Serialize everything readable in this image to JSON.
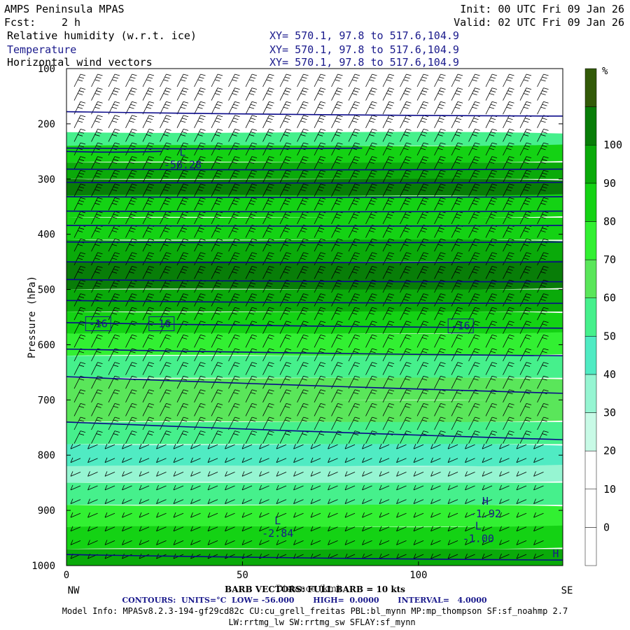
{
  "header": {
    "title": "AMPS Peninsula MPAS",
    "fcst_label": "Fcst:",
    "fcst_value": "2 h",
    "init": "Init: 00 UTC Fri 09 Jan 26",
    "valid": "Valid: 02 UTC Fri 09 Jan 26",
    "fields": [
      {
        "name": "Relative humidity (w.r.t. ice)",
        "xy": "XY= 570.1, 97.8 to 517.6,104.9"
      },
      {
        "name": "Temperature",
        "xy": "XY= 570.1, 97.8 to 517.6,104.9"
      },
      {
        "name": "Horizontal wind vectors",
        "xy": "XY= 570.1, 97.8 to 517.6,104.9"
      }
    ]
  },
  "footer": {
    "barb": "BARB VECTORS: FULL BARB = 10 kts",
    "xlabel": "Distance (km)",
    "contours": "CONTOURS:  UNITS=°C  LOW= -56.000       HIGH=  0.0000       INTERVAL=   4.0000",
    "model_info_1": "Model Info: MPASv8.2.3-194-gf29cd82c CU:cu_grell_freitas PBL:bl_mynn MP:mp_thompson SF:sf_noahmp 2.7",
    "model_info_2": "LW:rrtmg_lw SW:rrtmg_sw SFLAY:sf_mynn"
  },
  "colors": {
    "contour": "#0a0a8a",
    "rh_bins": [
      "#ffffff",
      "#ffffff",
      "#ffffff",
      "#c8fae6",
      "#96f5d2",
      "#50ebc3",
      "#46f08c",
      "#5ae65a",
      "#32f032",
      "#14d214",
      "#0aaa0a",
      "#087d08",
      "#325a08"
    ]
  },
  "chart_data": {
    "type": "heatmap",
    "ylabel": "Pressure (hPa)",
    "xlabel": "Distance (km)",
    "x_ticks": [
      0,
      50,
      100
    ],
    "x_range": [
      0,
      141
    ],
    "x_end_labels": {
      "left": "NW",
      "right": "SE"
    },
    "y_ticks": [
      100,
      200,
      300,
      400,
      500,
      600,
      700,
      800,
      900,
      1000
    ],
    "y_range": [
      100,
      1000
    ],
    "colorbar": {
      "unit": "%",
      "labels": [
        0,
        10,
        20,
        30,
        40,
        50,
        60,
        70,
        80,
        90,
        100
      ]
    },
    "rh_bands": [
      {
        "p": 100,
        "rh": 5
      },
      {
        "p": 180,
        "rh": 8
      },
      {
        "p": 215,
        "rh": 40
      },
      {
        "p": 240,
        "rh": 78
      },
      {
        "p": 270,
        "rh": 88
      },
      {
        "p": 300,
        "rh": 92
      },
      {
        "p": 330,
        "rh": 78
      },
      {
        "p": 370,
        "rh": 74
      },
      {
        "p": 410,
        "rh": 80
      },
      {
        "p": 450,
        "rh": 92
      },
      {
        "p": 500,
        "rh": 86
      },
      {
        "p": 540,
        "rh": 72
      },
      {
        "p": 580,
        "rh": 62
      },
      {
        "p": 620,
        "rh": 48
      },
      {
        "p": 660,
        "rh": 55
      },
      {
        "p": 700,
        "rh": 58
      },
      {
        "p": 740,
        "rh": 45
      },
      {
        "p": 780,
        "rh": 32
      },
      {
        "p": 820,
        "rh": 28
      },
      {
        "p": 850,
        "rh": 40
      },
      {
        "p": 890,
        "rh": 62
      },
      {
        "p": 930,
        "rh": 78
      },
      {
        "p": 970,
        "rh": 88
      },
      {
        "p": 1000,
        "rh": 95
      }
    ],
    "temperature_contours": [
      {
        "label": "",
        "p_left": 178,
        "p_right": 186
      },
      {
        "label": "",
        "p_left": 244,
        "p_right": 244,
        "x_end": 84
      },
      {
        "label": "",
        "p_left": 250,
        "p_right": 250,
        "x_end": 27
      },
      {
        "label": "",
        "p_left": 282,
        "p_right": 282
      },
      {
        "label": "",
        "p_left": 306,
        "p_right": 306
      },
      {
        "label": "",
        "p_left": 332,
        "p_right": 332
      },
      {
        "label": "",
        "p_left": 358,
        "p_right": 358
      },
      {
        "label": "",
        "p_left": 384,
        "p_right": 384
      },
      {
        "label": "",
        "p_left": 414,
        "p_right": 414
      },
      {
        "label": "",
        "p_left": 450,
        "p_right": 450
      },
      {
        "label": "",
        "p_left": 482,
        "p_right": 486
      },
      {
        "label": "",
        "p_left": 520,
        "p_right": 525
      },
      {
        "label": "-16",
        "p_left": 560,
        "p_right": 570
      },
      {
        "label": "",
        "p_left": 608,
        "p_right": 620
      },
      {
        "label": "",
        "p_left": 658,
        "p_right": 688
      },
      {
        "label": "",
        "p_left": 740,
        "p_right": 772
      },
      {
        "label": "",
        "p_left": 980,
        "p_right": 990
      }
    ],
    "contour_labels": [
      {
        "text": "-16",
        "x": 9,
        "p": 562
      },
      {
        "text": "-16",
        "x": 27,
        "p": 562
      },
      {
        "text": "-16",
        "x": 112,
        "p": 566
      }
    ],
    "extrema": [
      {
        "kind": "L",
        "value": "-56.28",
        "x": 33,
        "p": 258
      },
      {
        "kind": "H",
        "value": "-1.92",
        "x": 119,
        "p": 890
      },
      {
        "kind": "L",
        "value": "-2.84",
        "x": 60,
        "p": 925
      },
      {
        "kind": "L",
        "value": "-1.00",
        "x": 117,
        "p": 935
      },
      {
        "kind": "H",
        "value": "",
        "x": 139,
        "p": 985
      }
    ]
  }
}
